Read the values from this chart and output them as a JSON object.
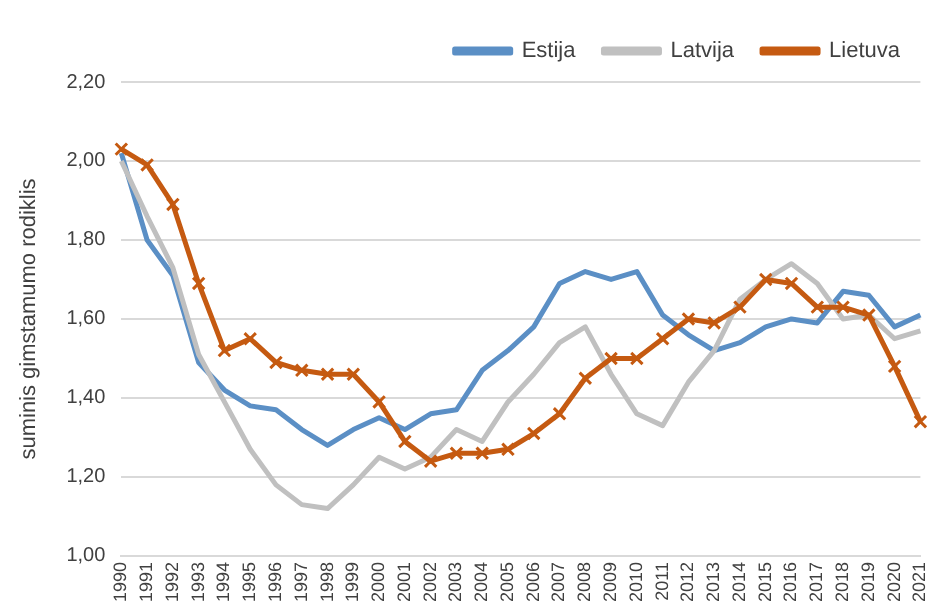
{
  "chart_data": {
    "type": "line",
    "ylabel": "suminis gimstamumo rodiklis",
    "categories": [
      "1990",
      "1991",
      "1992",
      "1993",
      "1994",
      "1995",
      "1996",
      "1997",
      "1998",
      "1999",
      "2000",
      "2001",
      "2002",
      "2003",
      "2004",
      "2005",
      "2006",
      "2007",
      "2008",
      "2009",
      "2010",
      "2011",
      "2012",
      "2013",
      "2014",
      "2015",
      "2016",
      "2017",
      "2018",
      "2019",
      "2020",
      "2021"
    ],
    "series": [
      {
        "name": "Estija",
        "color": "#5b8fc5",
        "marker": "none",
        "values": [
          2.02,
          1.8,
          1.71,
          1.49,
          1.42,
          1.38,
          1.37,
          1.32,
          1.28,
          1.32,
          1.35,
          1.32,
          1.36,
          1.37,
          1.47,
          1.52,
          1.58,
          1.69,
          1.72,
          1.7,
          1.72,
          1.61,
          1.56,
          1.52,
          1.54,
          1.58,
          1.6,
          1.59,
          1.67,
          1.66,
          1.58,
          1.61
        ]
      },
      {
        "name": "Latvija",
        "color": "#c0c0c0",
        "marker": "none",
        "values": [
          2.0,
          1.86,
          1.73,
          1.51,
          1.39,
          1.27,
          1.18,
          1.13,
          1.12,
          1.18,
          1.25,
          1.22,
          1.25,
          1.32,
          1.29,
          1.39,
          1.46,
          1.54,
          1.58,
          1.46,
          1.36,
          1.33,
          1.44,
          1.52,
          1.65,
          1.7,
          1.74,
          1.69,
          1.6,
          1.61,
          1.55,
          1.57
        ]
      },
      {
        "name": "Lietuva",
        "color": "#c55a11",
        "marker": "cross",
        "values": [
          2.03,
          1.99,
          1.89,
          1.69,
          1.52,
          1.55,
          1.49,
          1.47,
          1.46,
          1.46,
          1.39,
          1.29,
          1.24,
          1.26,
          1.26,
          1.27,
          1.31,
          1.36,
          1.45,
          1.5,
          1.5,
          1.55,
          1.6,
          1.59,
          1.63,
          1.7,
          1.69,
          1.63,
          1.63,
          1.61,
          1.48,
          1.34
        ]
      }
    ],
    "ylim": [
      1.0,
      2.2
    ],
    "yticks": [
      {
        "value": 1.0,
        "label": "1,00"
      },
      {
        "value": 1.2,
        "label": "1,20"
      },
      {
        "value": 1.4,
        "label": "1,40"
      },
      {
        "value": 1.6,
        "label": "1,60"
      },
      {
        "value": 1.8,
        "label": "1,80"
      },
      {
        "value": 2.0,
        "label": "2,00"
      },
      {
        "value": 2.2,
        "label": "2,20"
      }
    ],
    "grid": "y",
    "legend": "top right"
  }
}
